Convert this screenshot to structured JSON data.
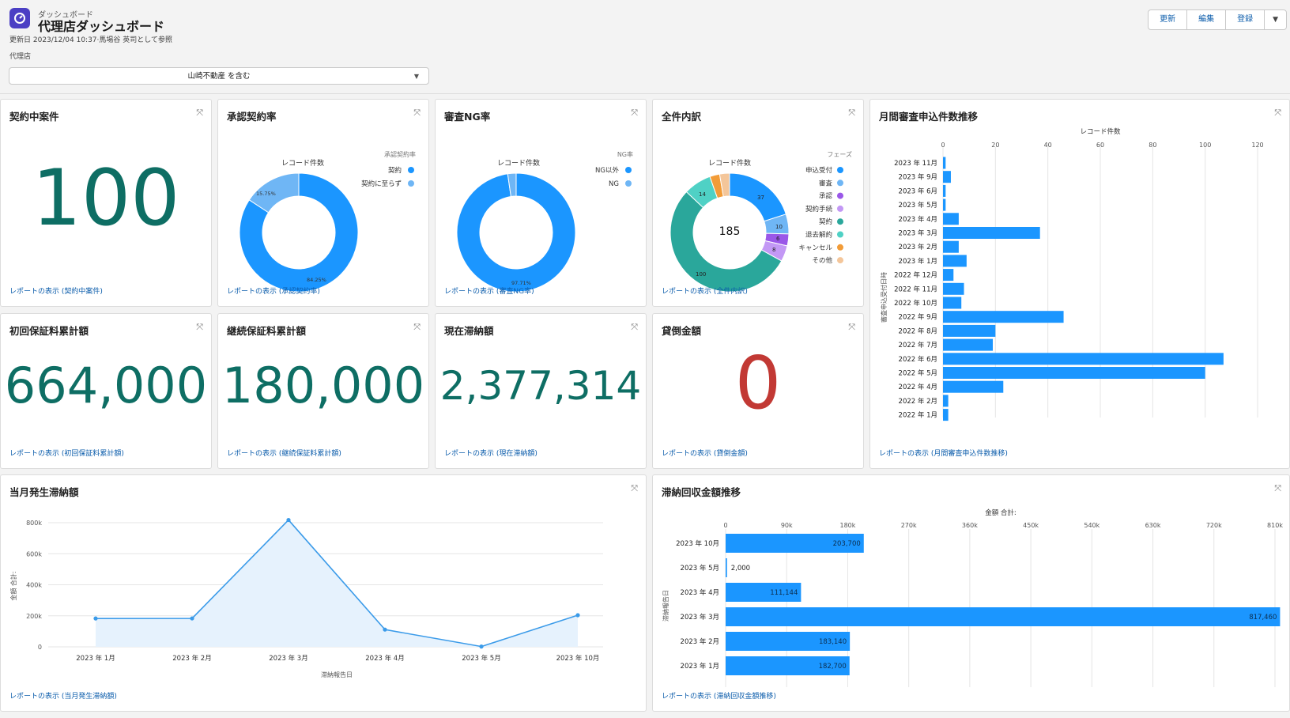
{
  "header": {
    "breadcrumb": "ダッシュボード",
    "title": "代理店ダッシュボード",
    "updated": "更新日 2023/12/04 10:37·馬場谷 英司として参照",
    "filter_label": "代理店",
    "filter_value": "山崎不動産 を含む",
    "buttons": {
      "refresh": "更新",
      "edit": "編集",
      "subscribe": "登録"
    }
  },
  "colors": {
    "accent": "#1b96ff",
    "metric": "#0e6e64",
    "zero": "#c23934",
    "link": "#0b5cab"
  },
  "expand_icon": "expand-icon",
  "cards": {
    "contracts": {
      "title": "契約中案件",
      "value": "100",
      "link": "レポートの表示 (契約中案件)"
    },
    "approval": {
      "title": "承認契約率",
      "chart_title": "レコード件数",
      "legend_title": "承認契約率",
      "legend": [
        "契約",
        "契約に至らず"
      ],
      "labels": [
        "84.25%",
        "15.75%"
      ],
      "link": "レポートの表示 (承認契約率)"
    },
    "ng": {
      "title": "審査NG率",
      "chart_title": "レコード件数",
      "legend_title": "NG率",
      "legend": [
        "NG以外",
        "NG"
      ],
      "labels": [
        "97.71%"
      ],
      "link": "レポートの表示 (審査NG率)"
    },
    "all": {
      "title": "全件内訳",
      "chart_title": "レコード件数",
      "legend_title": "フェーズ",
      "center": "185",
      "legend": [
        "申込受付",
        "審査",
        "承認",
        "契約手続",
        "契約",
        "退去解約",
        "キャンセル",
        "その他"
      ],
      "seg_labels": [
        "37",
        "10",
        "6",
        "8",
        "100",
        "14"
      ],
      "link": "レポートの表示 (全件内訳)"
    },
    "initial": {
      "title": "初回保証料累計額",
      "value": "664,000",
      "link": "レポートの表示 (初回保証料累計額)"
    },
    "ongoing": {
      "title": "継続保証料累計額",
      "value": "180,000",
      "link": "レポートの表示 (継続保証料累計額)"
    },
    "arrears": {
      "title": "現在滞納額",
      "value": "2,377,314",
      "link": "レポートの表示 (現在滞納額)"
    },
    "badDebt": {
      "title": "貸倒金額",
      "value": "0",
      "link": "レポートの表示 (貸倒金額)"
    },
    "monthly": {
      "title": "月間審査申込件数推移",
      "link": "レポートの表示 (月間審査申込件数推移)"
    },
    "currentArrears": {
      "title": "当月発生滞納額",
      "link": "レポートの表示 (当月発生滞納額)"
    },
    "recovery": {
      "title": "滞納回収金額推移",
      "link": "レポートの表示 (滞納回収金額推移)"
    }
  },
  "chart_data": [
    {
      "id": "approval",
      "type": "pie",
      "title": "レコード件数",
      "categories": [
        "契約",
        "契約に至らず"
      ],
      "values": [
        84.25,
        15.75
      ]
    },
    {
      "id": "ng",
      "type": "pie",
      "title": "レコード件数",
      "categories": [
        "NG以外",
        "NG"
      ],
      "values": [
        97.71,
        2.29
      ]
    },
    {
      "id": "all",
      "type": "pie",
      "title": "レコード件数",
      "categories": [
        "申込受付",
        "審査",
        "承認",
        "契約手続",
        "契約",
        "退去解約",
        "キャンセル",
        "その他"
      ],
      "values": [
        37,
        10,
        6,
        8,
        100,
        14,
        5,
        5
      ]
    },
    {
      "id": "monthly",
      "type": "bar",
      "orientation": "horizontal",
      "title": "レコード件数",
      "ylabel": "審査申込受付日時",
      "categories": [
        "2023 年 11月",
        "2023 年 9月",
        "2023 年 6月",
        "2023 年 5月",
        "2023 年 4月",
        "2023 年 3月",
        "2023 年 2月",
        "2023 年 1月",
        "2022 年 12月",
        "2022 年 11月",
        "2022 年 10月",
        "2022 年 9月",
        "2022 年 8月",
        "2022 年 7月",
        "2022 年 6月",
        "2022 年 5月",
        "2022 年 4月",
        "2022 年 2月",
        "2022 年 1月"
      ],
      "values": [
        1,
        3,
        1,
        1,
        6,
        37,
        6,
        9,
        4,
        8,
        7,
        46,
        20,
        19,
        107,
        100,
        23,
        2,
        2
      ],
      "xlim": [
        0,
        120
      ],
      "xticks": [
        0,
        20,
        40,
        60,
        80,
        100,
        120
      ]
    },
    {
      "id": "currentArrears",
      "type": "area",
      "ylabel": "金額 合計:",
      "xlabel": "滞納報告日",
      "categories": [
        "2023 年 1月",
        "2023 年 2月",
        "2023 年 3月",
        "2023 年 4月",
        "2023 年 5月",
        "2023 年 10月"
      ],
      "values": [
        182700,
        183140,
        817460,
        111144,
        2000,
        203700
      ],
      "ylim": [
        0,
        800000
      ],
      "yticks": [
        "0",
        "200k",
        "400k",
        "600k",
        "800k"
      ]
    },
    {
      "id": "recovery",
      "type": "bar",
      "orientation": "horizontal",
      "title": "金額 合計:",
      "ylabel": "滞納報告日",
      "categories": [
        "2023 年 10月",
        "2023 年 5月",
        "2023 年 4月",
        "2023 年 3月",
        "2023 年 2月",
        "2023 年 1月"
      ],
      "values": [
        203700,
        2000,
        111144,
        817460,
        183140,
        182700
      ],
      "data_labels": [
        "203,700",
        "2,000",
        "111,144",
        "817,460",
        "183,140",
        "182,700"
      ],
      "xlim": [
        0,
        810000
      ],
      "xticks": [
        "0",
        "90k",
        "180k",
        "270k",
        "360k",
        "450k",
        "540k",
        "630k",
        "720k",
        "810k"
      ]
    }
  ]
}
